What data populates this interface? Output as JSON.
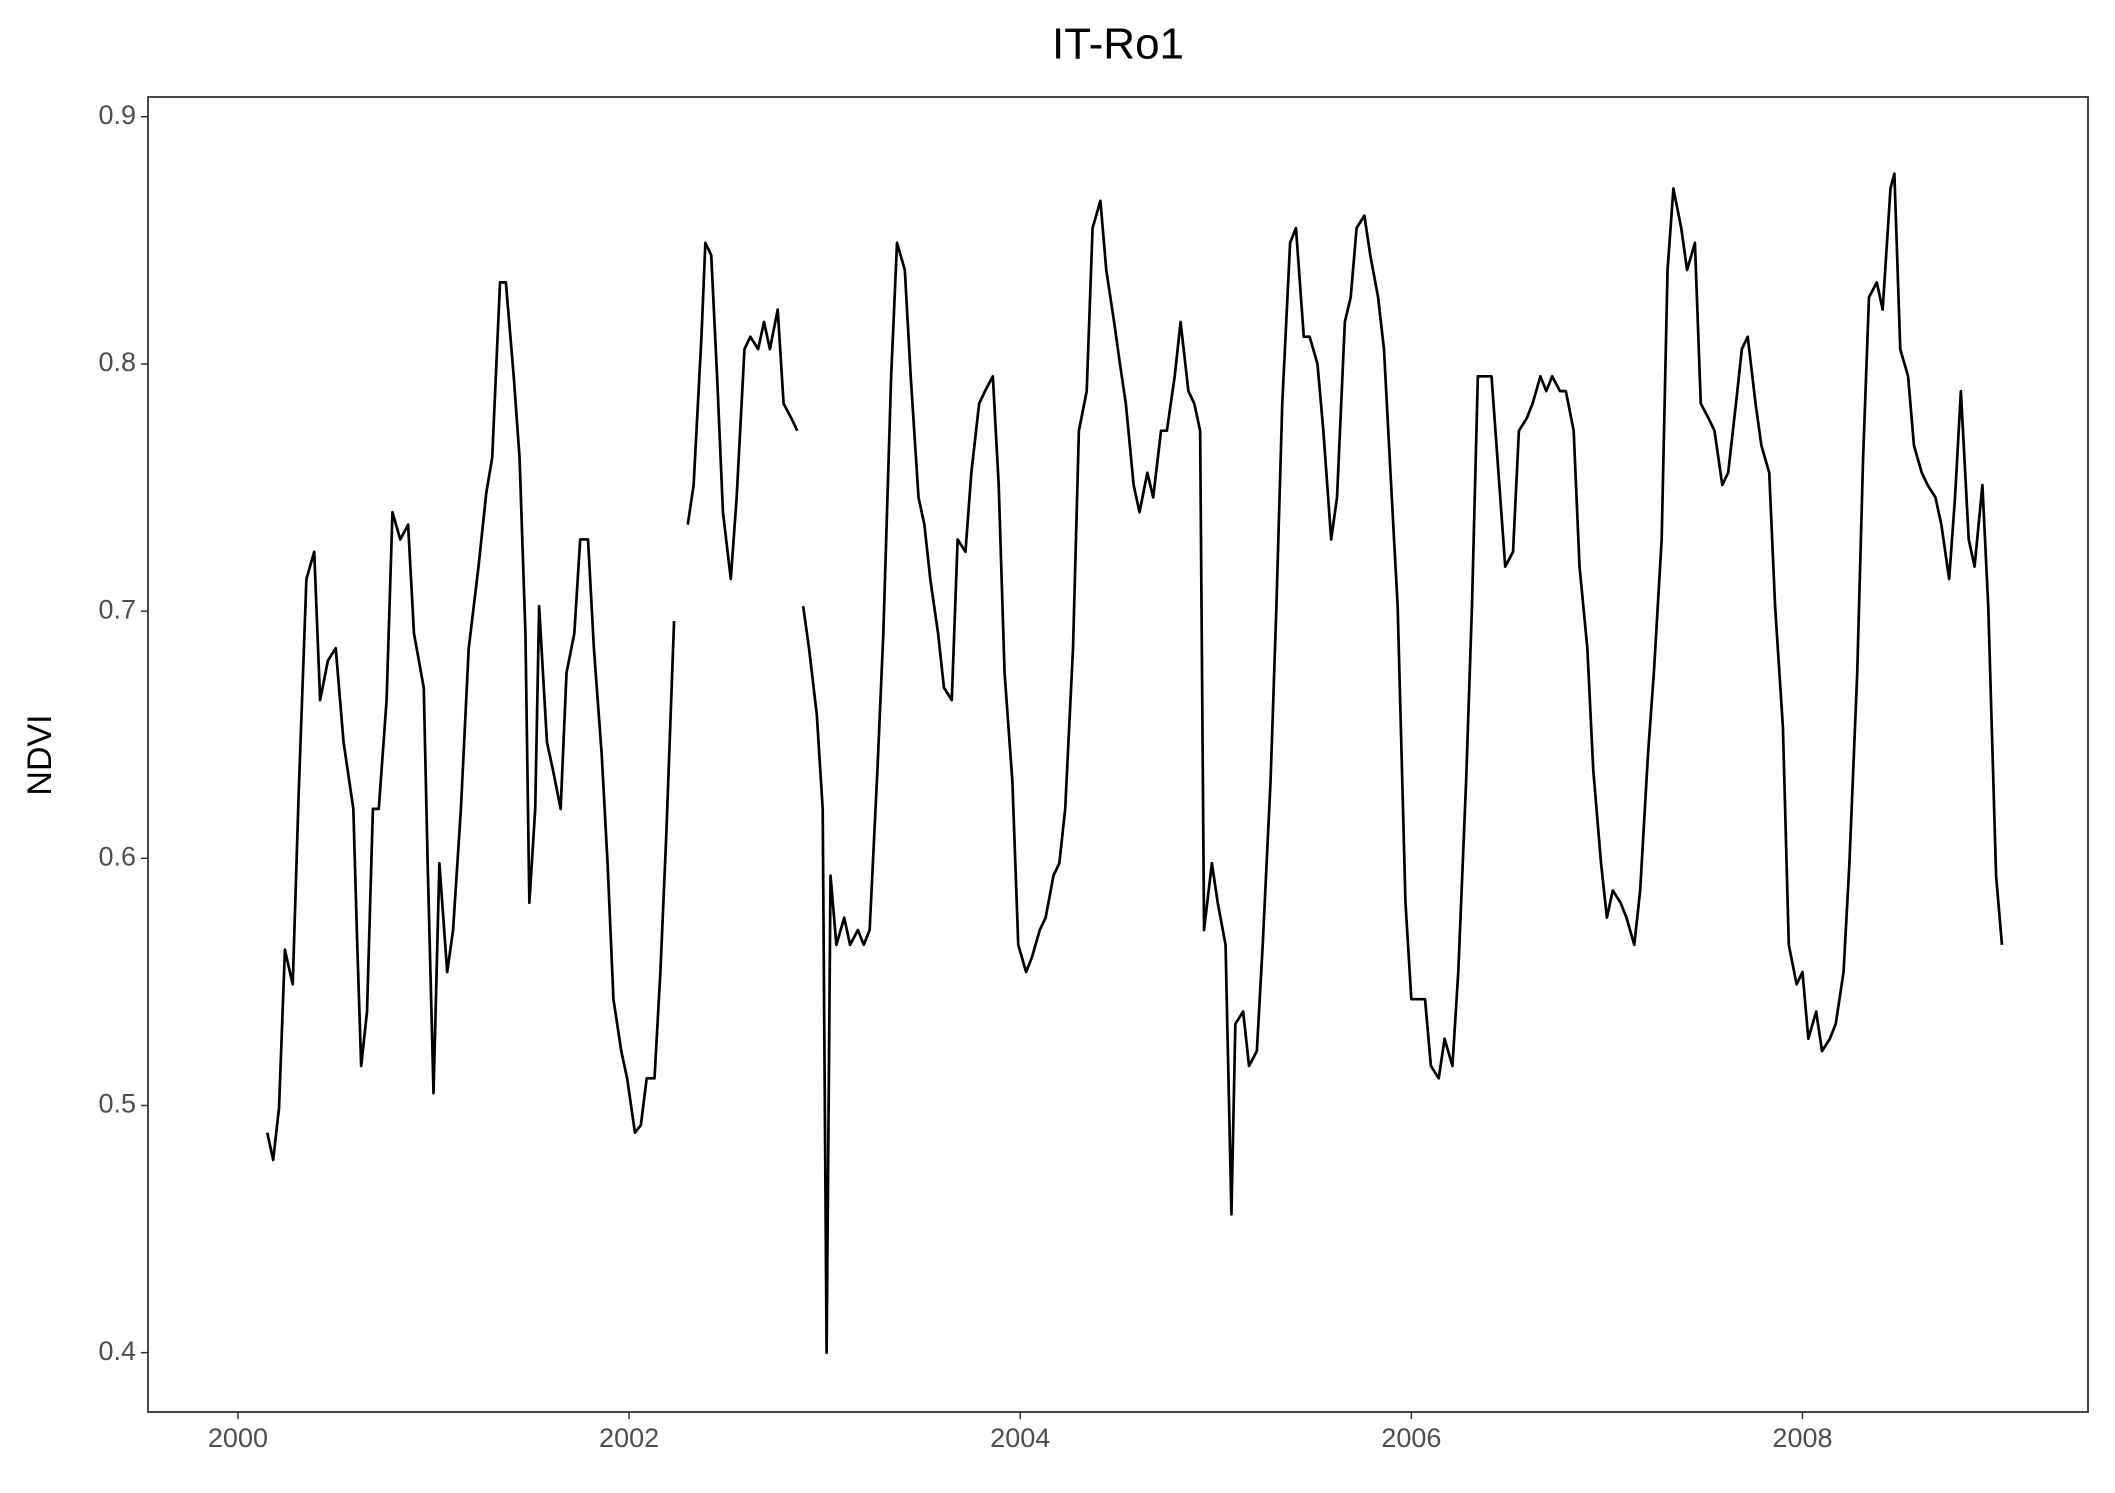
{
  "chart_data": {
    "type": "line",
    "title": "IT-Ro1",
    "y_label": "NDVI",
    "color": "#000000",
    "xlim": [
      1999.54,
      2009.46
    ],
    "xticks": [
      2000,
      2002,
      2004,
      2006,
      2008
    ],
    "ylim": [
      0.376,
      0.908
    ],
    "yticks": [
      0.4,
      0.5,
      0.6,
      0.7,
      0.8,
      0.9
    ],
    "x": [
      2000.15,
      2000.18,
      2000.21,
      2000.24,
      2000.28,
      2000.31,
      2000.35,
      2000.39,
      2000.42,
      2000.46,
      2000.5,
      2000.54,
      2000.59,
      2000.61,
      2000.63,
      2000.66,
      2000.69,
      2000.72,
      2000.76,
      2000.79,
      2000.83,
      2000.87,
      2000.9,
      2000.95,
      2000.97,
      2001.0,
      2001.03,
      2001.07,
      2001.1,
      2001.14,
      2001.18,
      2001.23,
      2001.27,
      2001.3,
      2001.34,
      2001.37,
      2001.41,
      2001.44,
      2001.47,
      2001.49,
      2001.52,
      2001.54,
      2001.58,
      2001.61,
      2001.65,
      2001.68,
      2001.72,
      2001.75,
      2001.79,
      2001.82,
      2001.86,
      2001.89,
      2001.92,
      2001.96,
      2001.99,
      2002.03,
      2002.06,
      2002.09,
      2002.13,
      2002.16,
      2002.19,
      2002.23,
      2002.26,
      2002.3,
      2002.33,
      2002.37,
      2002.39,
      2002.42,
      2002.45,
      2002.48,
      2002.52,
      2002.55,
      2002.59,
      2002.62,
      2002.66,
      2002.69,
      2002.72,
      2002.76,
      2002.79,
      2002.83,
      2002.86,
      2002.88,
      2002.89,
      2002.92,
      2002.96,
      2002.99,
      2003.01,
      2003.03,
      2003.06,
      2003.1,
      2003.13,
      2003.17,
      2003.2,
      2003.23,
      2003.27,
      2003.3,
      2003.34,
      2003.37,
      2003.41,
      2003.44,
      2003.48,
      2003.51,
      2003.54,
      2003.58,
      2003.61,
      2003.65,
      2003.68,
      2003.72,
      2003.75,
      2003.79,
      2003.82,
      2003.86,
      2003.89,
      2003.92,
      2003.96,
      2003.99,
      2004.03,
      2004.06,
      2004.1,
      2004.13,
      2004.17,
      2004.2,
      2004.23,
      2004.27,
      2004.3,
      2004.34,
      2004.37,
      2004.41,
      2004.44,
      2004.48,
      2004.51,
      2004.54,
      2004.58,
      2004.61,
      2004.65,
      2004.68,
      2004.72,
      2004.75,
      2004.79,
      2004.82,
      2004.86,
      2004.89,
      2004.92,
      2004.94,
      2004.98,
      2005.01,
      2005.05,
      2005.08,
      2005.1,
      2005.14,
      2005.17,
      2005.21,
      2005.24,
      2005.28,
      2005.31,
      2005.34,
      2005.38,
      2005.41,
      2005.45,
      2005.48,
      2005.52,
      2005.55,
      2005.59,
      2005.62,
      2005.66,
      2005.69,
      2005.72,
      2005.76,
      2005.79,
      2005.83,
      2005.86,
      2005.9,
      2005.93,
      2005.97,
      2006.0,
      2006.03,
      2006.07,
      2006.1,
      2006.14,
      2006.17,
      2006.21,
      2006.24,
      2006.28,
      2006.31,
      2006.34,
      2006.38,
      2006.41,
      2006.45,
      2006.48,
      2006.52,
      2006.55,
      2006.59,
      2006.62,
      2006.66,
      2006.69,
      2006.72,
      2006.76,
      2006.79,
      2006.83,
      2006.86,
      2006.9,
      2006.93,
      2006.97,
      2007.0,
      2007.03,
      2007.07,
      2007.1,
      2007.14,
      2007.17,
      2007.21,
      2007.24,
      2007.28,
      2007.31,
      2007.34,
      2007.38,
      2007.41,
      2007.45,
      2007.48,
      2007.52,
      2007.55,
      2007.59,
      2007.62,
      2007.66,
      2007.69,
      2007.72,
      2007.76,
      2007.79,
      2007.83,
      2007.86,
      2007.9,
      2007.93,
      2007.97,
      2008.0,
      2008.03,
      2008.07,
      2008.1,
      2008.14,
      2008.17,
      2008.21,
      2008.24,
      2008.28,
      2008.31,
      2008.34,
      2008.38,
      2008.41,
      2008.45,
      2008.47,
      2008.5,
      2008.54,
      2008.57,
      2008.61,
      2008.64,
      2008.68,
      2008.71,
      2008.75,
      2008.78,
      2008.81,
      2008.85,
      2008.88,
      2008.92,
      2008.95,
      2008.99,
      2009.02
    ],
    "values": [
      0.489,
      0.478,
      0.499,
      0.563,
      0.549,
      0.625,
      0.713,
      0.724,
      0.664,
      0.68,
      0.685,
      0.647,
      0.62,
      0.565,
      0.516,
      0.538,
      0.62,
      0.62,
      0.664,
      0.74,
      0.729,
      0.735,
      0.691,
      0.669,
      0.598,
      0.505,
      0.598,
      0.554,
      0.571,
      0.62,
      0.685,
      0.718,
      0.748,
      0.762,
      0.833,
      0.833,
      0.795,
      0.762,
      0.691,
      0.582,
      0.62,
      0.702,
      0.647,
      0.636,
      0.62,
      0.675,
      0.691,
      0.729,
      0.729,
      0.685,
      0.642,
      0.598,
      0.543,
      0.522,
      0.511,
      0.489,
      0.492,
      0.511,
      0.511,
      0.554,
      0.609,
      0.696,
      null,
      0.735,
      0.751,
      0.811,
      0.849,
      0.844,
      0.795,
      0.74,
      0.713,
      0.746,
      0.806,
      0.811,
      0.806,
      0.817,
      0.806,
      0.822,
      0.784,
      0.778,
      0.773,
      null,
      0.702,
      0.685,
      0.658,
      0.62,
      0.4,
      0.593,
      0.565,
      0.576,
      0.565,
      0.571,
      0.565,
      0.571,
      0.636,
      0.691,
      0.795,
      0.849,
      0.838,
      0.795,
      0.746,
      0.735,
      0.713,
      0.691,
      0.669,
      0.664,
      0.729,
      0.724,
      0.756,
      0.784,
      0.789,
      0.795,
      0.751,
      0.675,
      0.631,
      0.565,
      0.554,
      0.56,
      0.571,
      0.576,
      0.593,
      0.598,
      0.62,
      0.685,
      0.773,
      0.789,
      0.855,
      0.866,
      0.838,
      0.817,
      0.8,
      0.784,
      0.751,
      0.74,
      0.756,
      0.746,
      0.773,
      0.773,
      0.795,
      0.817,
      0.789,
      0.784,
      0.773,
      0.571,
      0.598,
      0.582,
      0.565,
      0.456,
      0.533,
      0.538,
      0.516,
      0.522,
      0.565,
      0.631,
      0.702,
      0.784,
      0.849,
      0.855,
      0.811,
      0.811,
      0.8,
      0.773,
      0.729,
      0.746,
      0.817,
      0.827,
      0.855,
      0.86,
      0.844,
      0.827,
      0.806,
      0.746,
      0.702,
      0.582,
      0.543,
      0.543,
      0.543,
      0.516,
      0.511,
      0.527,
      0.516,
      0.554,
      0.631,
      0.702,
      0.795,
      0.795,
      0.795,
      0.751,
      0.718,
      0.724,
      0.773,
      0.778,
      0.784,
      0.795,
      0.789,
      0.795,
      0.789,
      0.789,
      0.773,
      0.718,
      0.685,
      0.636,
      0.598,
      0.576,
      0.587,
      0.582,
      0.576,
      0.565,
      0.587,
      0.642,
      0.675,
      0.729,
      0.838,
      0.871,
      0.855,
      0.838,
      0.849,
      0.784,
      0.778,
      0.773,
      0.751,
      0.756,
      0.784,
      0.806,
      0.811,
      0.784,
      0.767,
      0.756,
      0.702,
      0.653,
      0.565,
      0.549,
      0.554,
      0.527,
      0.538,
      0.522,
      0.527,
      0.533,
      0.554,
      0.598,
      0.675,
      0.762,
      0.827,
      0.833,
      0.822,
      0.871,
      0.877,
      0.806,
      0.795,
      0.767,
      0.756,
      0.751,
      0.746,
      0.735,
      0.713,
      0.746,
      0.789,
      0.729,
      0.718,
      0.751,
      0.702,
      0.593,
      0.565
    ]
  }
}
